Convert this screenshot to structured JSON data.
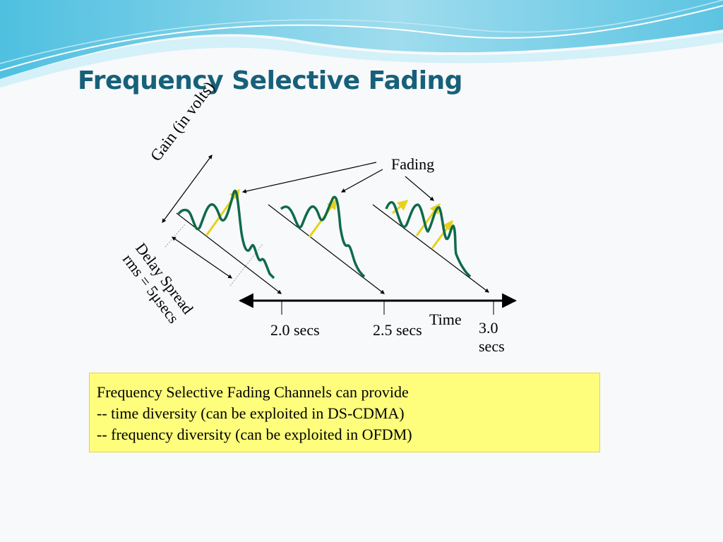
{
  "slide": {
    "title": "Frequency Selective Fading"
  },
  "diagram": {
    "axis_gain": "Gain (in volts)",
    "fading": "Fading",
    "delay_spread": "Delay Spread rms = 5μsecs",
    "time_axis": "Time",
    "ticks": [
      "2.0 secs",
      "2.5 secs",
      "3.0 secs"
    ],
    "colors": {
      "waveform": "#0f6a4c",
      "peak_arrow": "#e6d21c",
      "axis": "#000000"
    }
  },
  "note": {
    "lines": [
      "Frequency Selective Fading Channels can provide",
      "-- time diversity (can be exploited in DS-CDMA)",
      "-- frequency diversity (can be exploited in OFDM)"
    ]
  }
}
